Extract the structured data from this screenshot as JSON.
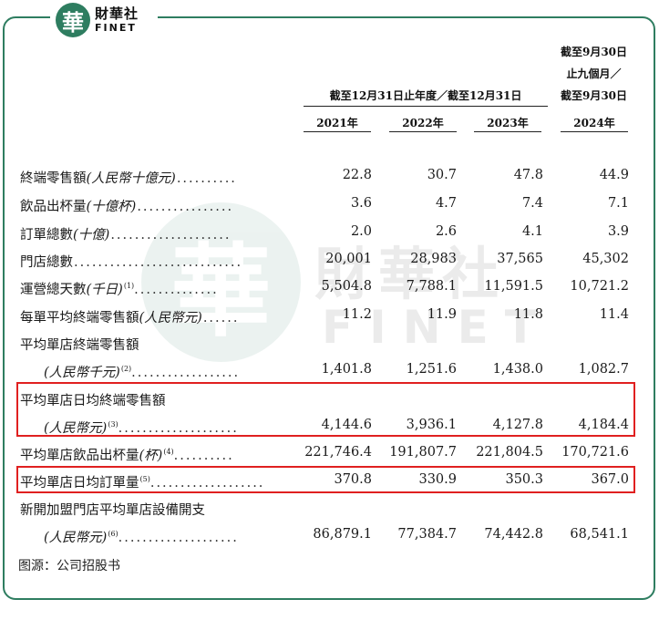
{
  "logo": {
    "mark": "華",
    "cn": "財華社",
    "en": "FINET"
  },
  "watermark": {
    "mark": "華",
    "cn": "財華社",
    "en": "FINET"
  },
  "header": {
    "group_left": "截至12月31日止年度／截至12月31日",
    "group_right": [
      "截至9月30日",
      "止九個月／",
      "截至9月30日"
    ],
    "years": [
      "2021年",
      "2022年",
      "2023年",
      "2024年"
    ]
  },
  "rows": [
    {
      "label": "終端零售額",
      "unit": "(人民幣十億元)",
      "sup": "",
      "dots": "..........",
      "values": [
        "22.8",
        "30.7",
        "47.8",
        "44.9"
      ]
    },
    {
      "label": "飲品出杯量",
      "unit": "(十億杯)",
      "sup": "",
      "dots": "................",
      "values": [
        "3.6",
        "4.7",
        "7.4",
        "7.1"
      ]
    },
    {
      "label": "訂單總數",
      "unit": "(十億)",
      "sup": "",
      "dots": "....................",
      "values": [
        "2.0",
        "2.6",
        "4.1",
        "3.9"
      ]
    },
    {
      "label": "門店總數",
      "unit": "",
      "sup": "",
      "dots": "............................",
      "values": [
        "20,001",
        "28,983",
        "37,565",
        "45,302"
      ]
    },
    {
      "label": "運營總天數",
      "unit": "(千日)",
      "sup": "(1)",
      "dots": "..............",
      "values": [
        "5,504.8",
        "7,788.1",
        "11,591.5",
        "10,721.2"
      ]
    },
    {
      "label": "每單平均終端零售額",
      "unit": "(人民幣元)",
      "sup": "",
      "dots": "......",
      "values": [
        "11.2",
        "11.9",
        "11.8",
        "11.4"
      ]
    },
    {
      "label": "平均單店終端零售額",
      "unit": "",
      "sup": "",
      "dots": "",
      "values": []
    },
    {
      "label": "",
      "unit": "(人民幣千元)",
      "sup": "(2)",
      "dots": "..................",
      "values": [
        "1,401.8",
        "1,251.6",
        "1,438.0",
        "1,082.7"
      ]
    },
    {
      "label": "平均單店日均終端零售額",
      "unit": "",
      "sup": "",
      "dots": "",
      "values": []
    },
    {
      "label": "",
      "unit": "(人民幣元)",
      "sup": "(3)",
      "dots": "....................",
      "values": [
        "4,144.6",
        "3,936.1",
        "4,127.8",
        "4,184.4"
      ]
    },
    {
      "label": "平均單店飲品出杯量",
      "unit": "(杯)",
      "sup": "(4)",
      "dots": "..........",
      "values": [
        "221,746.4",
        "191,807.7",
        "221,804.5",
        "170,721.6"
      ]
    },
    {
      "label": "平均單店日均訂單量",
      "unit": "",
      "sup": "(5)",
      "dots": "...................",
      "values": [
        "370.8",
        "330.9",
        "350.3",
        "367.0"
      ]
    },
    {
      "label": "新開加盟門店平均單店設備開支",
      "unit": "",
      "sup": "",
      "dots": "",
      "values": []
    },
    {
      "label": "",
      "unit": "(人民幣元)",
      "sup": "(6)",
      "dots": "....................",
      "values": [
        "86,879.1",
        "77,384.7",
        "74,442.8",
        "68,541.1"
      ]
    }
  ],
  "source": "图源：公司招股书"
}
